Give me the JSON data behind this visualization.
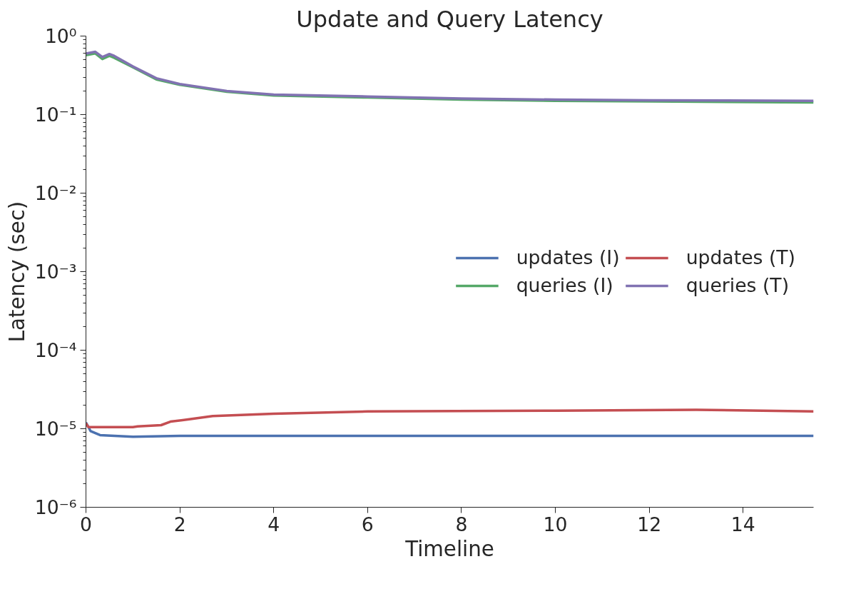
{
  "chart_data": {
    "type": "line",
    "title": "Update and Query Latency",
    "xlabel": "Timeline",
    "ylabel": "Latency (sec)",
    "log": "y",
    "grid": false,
    "legend": "right",
    "line_style": "solid",
    "marker": "none",
    "xlim": [
      0,
      15.5
    ],
    "xticks": [
      0,
      2,
      4,
      6,
      8,
      10,
      12,
      14
    ],
    "ylim": [
      1e-06,
      1
    ],
    "yticks": [
      {
        "value": 1e-06,
        "label": "10⁻⁶"
      },
      {
        "value": 1e-05,
        "label": "10⁻⁵"
      },
      {
        "value": 0.0001,
        "label": "10⁻⁴"
      },
      {
        "value": 0.001,
        "label": "10⁻³"
      },
      {
        "value": 0.01,
        "label": "10⁻²"
      },
      {
        "value": 0.1,
        "label": "10⁻¹"
      },
      {
        "value": 1,
        "label": "10⁰"
      }
    ],
    "series": [
      {
        "name": "updates (I)",
        "color": "#4c72b0",
        "x": [
          0,
          0.1,
          0.3,
          1,
          2,
          4,
          6,
          8,
          10,
          12,
          14,
          15.5
        ],
        "values": [
          1.2e-05,
          9.3e-06,
          8.3e-06,
          7.9e-06,
          8.1e-06,
          8.1e-06,
          8.1e-06,
          8.1e-06,
          8.1e-06,
          8.1e-06,
          8.1e-06,
          8.1e-06
        ]
      },
      {
        "name": "queries (I)",
        "color": "#55a868",
        "x": [
          0,
          0.2,
          0.35,
          0.5,
          0.6,
          1,
          1.5,
          2,
          3,
          4,
          6,
          8,
          10,
          12,
          15.5
        ],
        "values": [
          0.57,
          0.6,
          0.51,
          0.56,
          0.53,
          0.4,
          0.28,
          0.24,
          0.195,
          0.175,
          0.165,
          0.155,
          0.15,
          0.147,
          0.143
        ]
      },
      {
        "name": "updates (T)",
        "color": "#c44e52",
        "x": [
          0,
          0.05,
          1,
          1.1,
          1.6,
          1.8,
          2.2,
          2.7,
          4,
          6,
          10,
          13,
          15.5
        ],
        "values": [
          1.17e-05,
          1.05e-05,
          1.05e-05,
          1.07e-05,
          1.11e-05,
          1.23e-05,
          1.32e-05,
          1.45e-05,
          1.55e-05,
          1.66e-05,
          1.7e-05,
          1.74e-05,
          1.66e-05
        ]
      },
      {
        "name": "queries (T)",
        "color": "#8172b2",
        "x": [
          0,
          0.2,
          0.35,
          0.5,
          0.6,
          1,
          1.5,
          2,
          3,
          4,
          6,
          8,
          10,
          12,
          15.5
        ],
        "values": [
          0.6,
          0.63,
          0.54,
          0.59,
          0.56,
          0.41,
          0.29,
          0.245,
          0.2,
          0.18,
          0.17,
          0.16,
          0.155,
          0.152,
          0.15
        ]
      }
    ]
  }
}
